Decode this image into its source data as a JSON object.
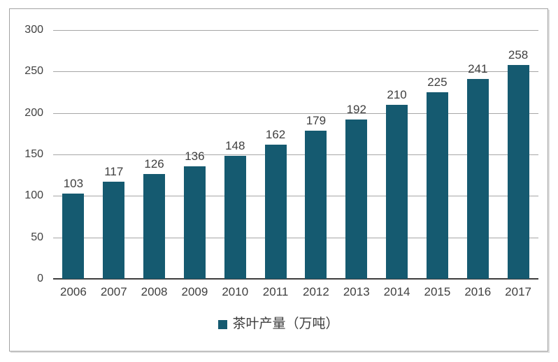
{
  "chart": {
    "bar_color": "#155a70",
    "gridline_color": "#a6a6a6",
    "axis_color": "#3d3d3d",
    "text_color": "#404040",
    "legend_label": "茶叶产量（万吨）"
  },
  "chart_data": {
    "type": "bar",
    "title": "",
    "xlabel": "",
    "ylabel": "",
    "categories": [
      "2006",
      "2007",
      "2008",
      "2009",
      "2010",
      "2011",
      "2012",
      "2013",
      "2014",
      "2015",
      "2016",
      "2017"
    ],
    "values": [
      103,
      117,
      126,
      136,
      148,
      162,
      179,
      192,
      210,
      225,
      241,
      258
    ],
    "series_name": "茶叶产量（万吨）",
    "ylim": [
      0,
      300
    ],
    "yticks": [
      0,
      50,
      100,
      150,
      200,
      250,
      300
    ],
    "grid": true,
    "legend_position": "bottom",
    "bar_data_labels": true
  }
}
